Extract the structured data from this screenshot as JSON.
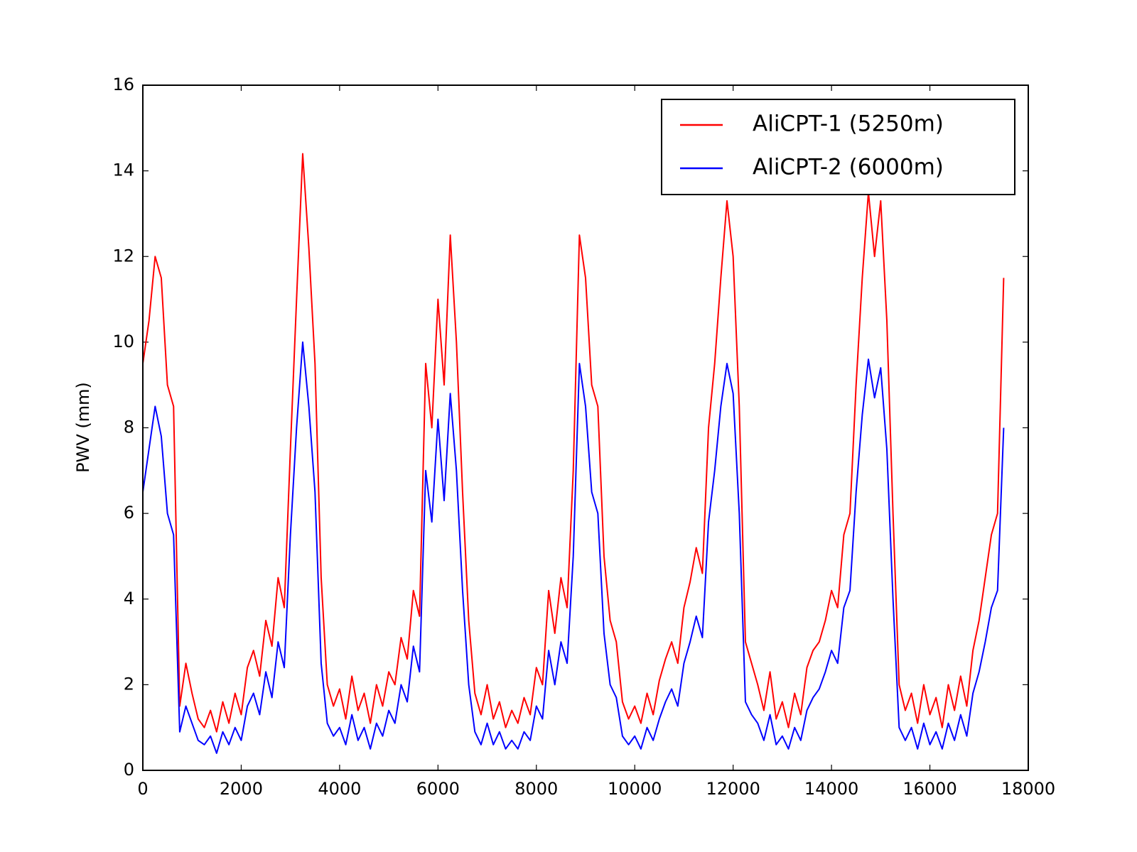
{
  "chart_data": {
    "type": "line",
    "ylabel": "PWV (mm)",
    "x": [
      0,
      125,
      250,
      375,
      500,
      625,
      750,
      875,
      1000,
      1125,
      1250,
      1375,
      1500,
      1625,
      1750,
      1875,
      2000,
      2125,
      2250,
      2375,
      2500,
      2625,
      2750,
      2875,
      3000,
      3125,
      3250,
      3375,
      3500,
      3625,
      3750,
      3875,
      4000,
      4125,
      4250,
      4375,
      4500,
      4625,
      4750,
      4875,
      5000,
      5125,
      5250,
      5375,
      5500,
      5625,
      5750,
      5875,
      6000,
      6125,
      6250,
      6375,
      6500,
      6625,
      6750,
      6875,
      7000,
      7125,
      7250,
      7375,
      7500,
      7625,
      7750,
      7875,
      8000,
      8125,
      8250,
      8375,
      8500,
      8625,
      8750,
      8875,
      9000,
      9125,
      9250,
      9375,
      9500,
      9625,
      9750,
      9875,
      10000,
      10125,
      10250,
      10375,
      10500,
      10625,
      10750,
      10875,
      11000,
      11125,
      11250,
      11375,
      11500,
      11625,
      11750,
      11875,
      12000,
      12125,
      12250,
      12375,
      12500,
      12625,
      12750,
      12875,
      13000,
      13125,
      13250,
      13375,
      13500,
      13625,
      13750,
      13875,
      14000,
      14125,
      14250,
      14375,
      14500,
      14625,
      14750,
      14875,
      15000,
      15125,
      15250,
      15375,
      15500,
      15625,
      15750,
      15875,
      16000,
      16125,
      16250,
      16375,
      16500,
      16625,
      16750,
      16875,
      17000,
      17125,
      17250,
      17375,
      17500
    ],
    "series": [
      {
        "name": "AliCPT-1 (5250m)",
        "color": "#ff0000",
        "values": [
          9.5,
          10.5,
          12.0,
          11.5,
          9.0,
          8.5,
          1.5,
          2.5,
          1.8,
          1.2,
          1.0,
          1.4,
          0.9,
          1.6,
          1.1,
          1.8,
          1.3,
          2.4,
          2.8,
          2.2,
          3.5,
          2.9,
          4.5,
          3.8,
          7.5,
          11.0,
          14.4,
          12.2,
          9.5,
          4.5,
          2.0,
          1.5,
          1.9,
          1.2,
          2.2,
          1.4,
          1.8,
          1.1,
          2.0,
          1.5,
          2.3,
          2.0,
          3.1,
          2.6,
          4.2,
          3.6,
          9.5,
          8.0,
          11.0,
          9.0,
          12.5,
          10.0,
          6.5,
          3.5,
          1.8,
          1.3,
          2.0,
          1.2,
          1.6,
          1.0,
          1.4,
          1.1,
          1.7,
          1.3,
          2.4,
          2.0,
          4.2,
          3.2,
          4.5,
          3.8,
          7.0,
          12.5,
          11.5,
          9.0,
          8.5,
          5.0,
          3.5,
          3.0,
          1.6,
          1.2,
          1.5,
          1.1,
          1.8,
          1.3,
          2.1,
          2.6,
          3.0,
          2.5,
          3.8,
          4.4,
          5.2,
          4.6,
          8.0,
          9.5,
          11.5,
          13.3,
          12.0,
          8.5,
          3.0,
          2.5,
          2.0,
          1.4,
          2.3,
          1.2,
          1.6,
          1.0,
          1.8,
          1.3,
          2.4,
          2.8,
          3.0,
          3.5,
          4.2,
          3.8,
          5.5,
          6.0,
          9.0,
          11.5,
          13.5,
          12.0,
          13.3,
          10.5,
          6.0,
          2.0,
          1.4,
          1.8,
          1.1,
          2.0,
          1.3,
          1.7,
          1.0,
          2.0,
          1.4,
          2.2,
          1.5,
          2.8,
          3.5,
          4.5,
          5.5,
          6.0,
          11.5
        ]
      },
      {
        "name": "AliCPT-2 (6000m)",
        "color": "#0000ff",
        "values": [
          6.5,
          7.5,
          8.5,
          7.8,
          6.0,
          5.5,
          0.9,
          1.5,
          1.1,
          0.7,
          0.6,
          0.8,
          0.4,
          0.9,
          0.6,
          1.0,
          0.7,
          1.5,
          1.8,
          1.3,
          2.3,
          1.7,
          3.0,
          2.4,
          5.5,
          8.0,
          10.0,
          8.5,
          6.5,
          2.5,
          1.1,
          0.8,
          1.0,
          0.6,
          1.3,
          0.7,
          1.0,
          0.5,
          1.1,
          0.8,
          1.4,
          1.1,
          2.0,
          1.6,
          2.9,
          2.3,
          7.0,
          5.8,
          8.2,
          6.3,
          8.8,
          7.0,
          4.2,
          2.0,
          0.9,
          0.6,
          1.1,
          0.6,
          0.9,
          0.5,
          0.7,
          0.5,
          0.9,
          0.7,
          1.5,
          1.2,
          2.8,
          2.0,
          3.0,
          2.5,
          5.0,
          9.5,
          8.5,
          6.5,
          6.0,
          3.2,
          2.0,
          1.7,
          0.8,
          0.6,
          0.8,
          0.5,
          1.0,
          0.7,
          1.2,
          1.6,
          1.9,
          1.5,
          2.5,
          3.0,
          3.6,
          3.1,
          5.8,
          7.0,
          8.5,
          9.5,
          8.8,
          6.0,
          1.6,
          1.3,
          1.1,
          0.7,
          1.3,
          0.6,
          0.8,
          0.5,
          1.0,
          0.7,
          1.4,
          1.7,
          1.9,
          2.3,
          2.8,
          2.5,
          3.8,
          4.2,
          6.5,
          8.3,
          9.6,
          8.7,
          9.4,
          7.5,
          4.0,
          1.0,
          0.7,
          1.0,
          0.5,
          1.1,
          0.6,
          0.9,
          0.5,
          1.1,
          0.7,
          1.3,
          0.8,
          1.8,
          2.3,
          3.0,
          3.8,
          4.2,
          8.0
        ]
      }
    ],
    "xlim": [
      0,
      18000
    ],
    "xticks": [
      0,
      2000,
      4000,
      6000,
      8000,
      10000,
      12000,
      14000,
      16000,
      18000
    ],
    "ylim": [
      0,
      16
    ],
    "yticks": [
      0,
      2,
      4,
      6,
      8,
      10,
      12,
      14,
      16
    ],
    "legend": "upper right"
  }
}
